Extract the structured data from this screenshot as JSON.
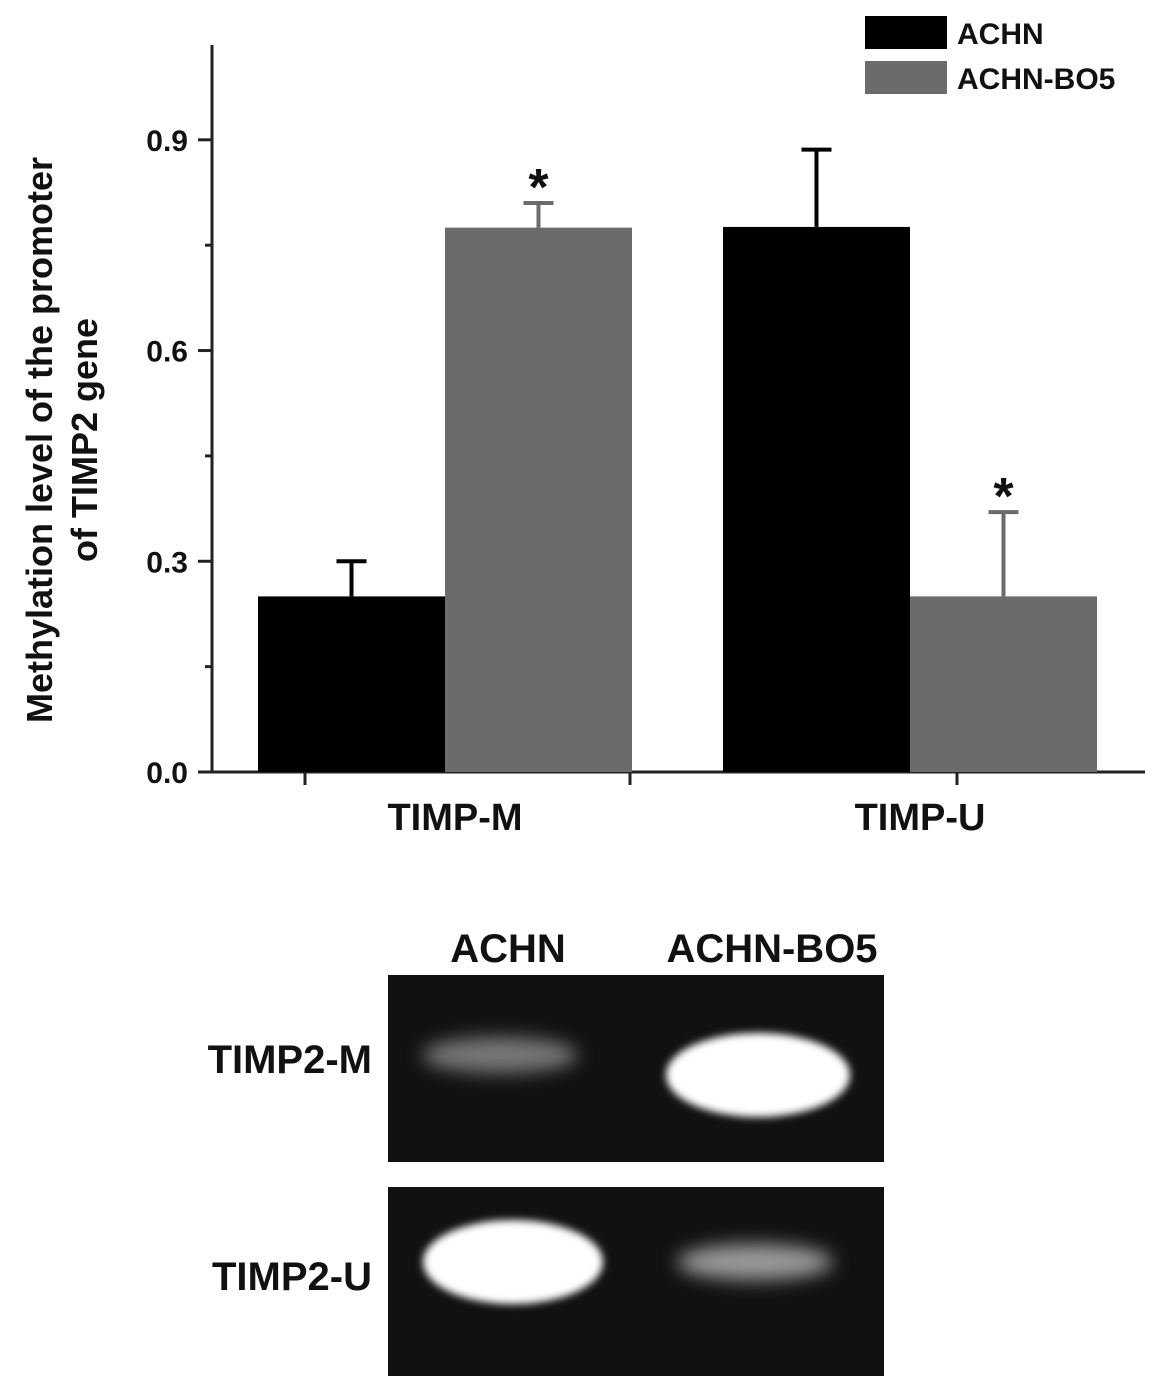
{
  "chart_data": {
    "type": "bar",
    "y_label_lines": [
      "Methylation level of the promoter",
      "of TIMP2 gene"
    ],
    "categories": [
      "TIMP-M",
      "TIMP-U"
    ],
    "series": [
      {
        "name": "ACHN",
        "color": "#000000",
        "values": [
          0.25,
          0.776
        ],
        "errors": [
          0.05,
          0.11
        ]
      },
      {
        "name": "ACHN-BO5",
        "color": "#6b6b6b",
        "values": [
          0.775,
          0.25
        ],
        "errors": [
          0.035,
          0.12
        ],
        "value_annotations": [
          "*",
          "*"
        ]
      }
    ],
    "ylim": [
      0,
      1.035
    ],
    "yticks": [
      {
        "value": 0,
        "label": "0.0"
      },
      0.3,
      0.6,
      0.9
    ],
    "minor_yticks": [
      0.15,
      0.45,
      0.75
    ],
    "legend": "top-right"
  },
  "gel": {
    "lanes": [
      "ACHN",
      "ACHN-BO5"
    ],
    "rows": [
      "TIMP2-M",
      "TIMP2-U"
    ]
  }
}
